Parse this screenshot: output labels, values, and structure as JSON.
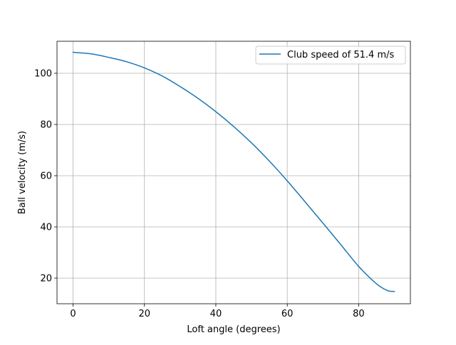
{
  "chart_data": {
    "type": "line",
    "title": "",
    "xlabel": "Loft angle (degrees)",
    "ylabel": "Ball velocity (m/s)",
    "xlim": [
      -4.5,
      94.5
    ],
    "ylim": [
      10.0,
      112.5
    ],
    "xticks": [
      0,
      20,
      40,
      60,
      80
    ],
    "yticks": [
      20,
      40,
      60,
      80,
      100
    ],
    "grid": true,
    "legend": "upper-right",
    "series": [
      {
        "name": "Club speed of 51.4 m/s",
        "color": "#1f77b4",
        "x": [
          0,
          5,
          10,
          15,
          20,
          25,
          30,
          35,
          40,
          45,
          50,
          55,
          60,
          65,
          70,
          75,
          80,
          85,
          88,
          90
        ],
        "y": [
          108.2,
          107.6,
          106.2,
          104.5,
          102.1,
          98.9,
          94.8,
          90.2,
          85.0,
          79.2,
          72.8,
          65.7,
          58.0,
          49.8,
          41.5,
          33.1,
          24.6,
          17.8,
          15.2,
          14.8
        ]
      }
    ]
  }
}
